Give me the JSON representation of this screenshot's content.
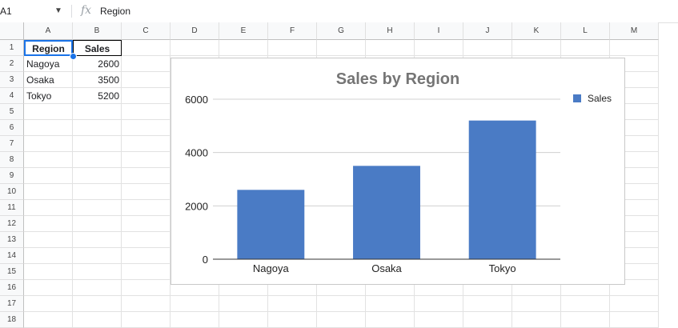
{
  "formula_bar": {
    "cell_ref": "A1",
    "formula": "Region"
  },
  "columns": [
    "A",
    "B",
    "C",
    "D",
    "E",
    "F",
    "G",
    "H",
    "I",
    "J",
    "K",
    "L",
    "M"
  ],
  "rows": [
    "1",
    "2",
    "3",
    "4",
    "5",
    "6",
    "7",
    "8",
    "9",
    "10",
    "11",
    "12",
    "13",
    "14",
    "15",
    "16",
    "17",
    "18"
  ],
  "sheet": {
    "header": [
      "Region",
      "Sales"
    ],
    "data": [
      [
        "Nagoya",
        "2600"
      ],
      [
        "Osaka",
        "3500"
      ],
      [
        "Tokyo",
        "5200"
      ]
    ]
  },
  "chart_data": {
    "type": "bar",
    "title": "Sales by Region",
    "categories": [
      "Nagoya",
      "Osaka",
      "Tokyo"
    ],
    "series": [
      {
        "name": "Sales",
        "values": [
          2600,
          3500,
          5200
        ],
        "color": "#4a7bc5"
      }
    ],
    "ylim": [
      0,
      6000
    ],
    "yticks": [
      "0",
      "2000",
      "4000",
      "6000"
    ],
    "legend": "right",
    "grid": true
  }
}
